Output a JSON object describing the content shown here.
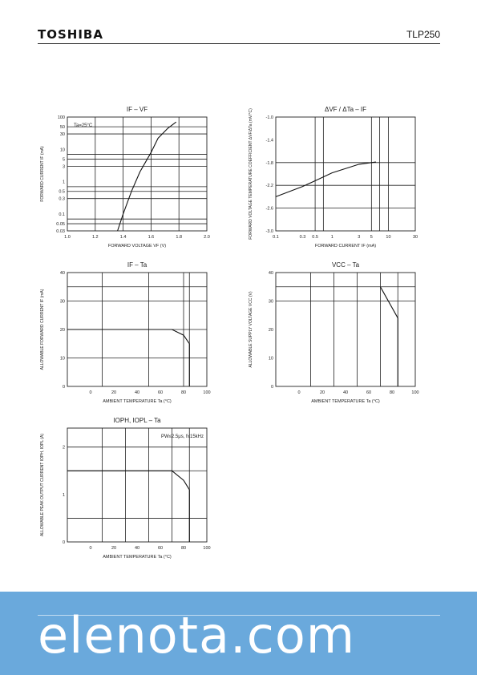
{
  "header": {
    "brand": "TOSHIBA",
    "part": "TLP250"
  },
  "watermark": "elenota.com",
  "chart_data": [
    {
      "id": "ifvf",
      "type": "line",
      "title": "IF – VF",
      "annotation": "Ta=25°C",
      "xlabel": "FORWARD VOLTAGE  VF  (V)",
      "ylabel": "FORWARD CURRENT  IF  (mA)",
      "xscale": "linear",
      "yscale": "log",
      "xlim": [
        1.0,
        2.0
      ],
      "ylim": [
        0.03,
        100
      ],
      "xticks": [
        1.0,
        1.2,
        1.4,
        1.6,
        1.8,
        2.0
      ],
      "xtick_labels": [
        "1.0",
        "1.2",
        "1.4",
        "1.6",
        "1.8",
        "2.0"
      ],
      "yticks": [
        0.03,
        0.05,
        0.1,
        0.3,
        0.5,
        1,
        3,
        5,
        10,
        30,
        50,
        100
      ],
      "ytick_labels": [
        "0.03",
        "0.05",
        "0.1",
        "0.3",
        "0.5",
        "1",
        "3",
        "5",
        "10",
        "30",
        "50",
        "100"
      ],
      "grid_x": [
        1.2,
        1.4,
        1.6,
        1.8
      ],
      "grid_y": [
        0.05,
        0.07,
        0.3,
        0.5,
        0.7,
        3,
        5,
        7,
        30,
        50
      ],
      "series": [
        {
          "x": [
            1.36,
            1.4,
            1.46,
            1.52,
            1.6,
            1.65,
            1.72,
            1.78
          ],
          "y": [
            0.03,
            0.1,
            0.5,
            2,
            8,
            22,
            45,
            70
          ]
        }
      ]
    },
    {
      "id": "dvf",
      "type": "line",
      "title": "ΔVF / ΔTa – IF",
      "xlabel": "FORWARD CURRENT  IF  (mA)",
      "ylabel": "FORWARD VOLTAGE TEMPERATURE COEFFICIENT  ΔVF/ΔTa  (mV/°C)",
      "xscale": "log",
      "yscale": "linear",
      "xlim": [
        0.1,
        30
      ],
      "ylim": [
        -3.0,
        -1.0
      ],
      "xticks": [
        0.1,
        0.3,
        0.5,
        1,
        3,
        5,
        10,
        30
      ],
      "xtick_labels": [
        "0.1",
        "0.3",
        "0.5",
        "1",
        "3",
        "5",
        "10",
        "30"
      ],
      "yticks": [
        -3.0,
        -2.6,
        -2.2,
        -1.8,
        -1.4,
        -1.0
      ],
      "ytick_labels": [
        "-3.0",
        "-2.6",
        "-2.2",
        "-1.8",
        "-1.4",
        "-1.0"
      ],
      "grid_x": [
        0.5,
        0.7,
        5,
        7,
        10
      ],
      "grid_y": [
        -2.6,
        -2.2,
        -1.8
      ],
      "series": [
        {
          "x": [
            0.1,
            0.3,
            0.5,
            1,
            3,
            6
          ],
          "y": [
            -2.4,
            -2.22,
            -2.12,
            -1.98,
            -1.83,
            -1.79
          ]
        }
      ]
    },
    {
      "id": "ifta",
      "type": "line",
      "title": "IF – Ta",
      "xlabel": "AMBIENT TEMPERATURE  Ta  (°C)",
      "ylabel": "ALLOWABLE FORWARD CURRENT  IF  (mA)",
      "xscale": "linear",
      "yscale": "linear",
      "xlim": [
        -20,
        100
      ],
      "ylim": [
        0,
        40
      ],
      "xticks": [
        0,
        20,
        40,
        60,
        80,
        100
      ],
      "xtick_labels": [
        "0",
        "20",
        "40",
        "60",
        "80",
        "100"
      ],
      "yticks": [
        0,
        10,
        20,
        30,
        40
      ],
      "ytick_labels": [
        "0",
        "10",
        "20",
        "30",
        "40"
      ],
      "grid_x": [
        10,
        50,
        80,
        85
      ],
      "grid_y": [
        10,
        20,
        30,
        35
      ],
      "series": [
        {
          "x": [
            -20,
            70,
            80,
            85,
            85
          ],
          "y": [
            20,
            20,
            18,
            15,
            0
          ]
        }
      ]
    },
    {
      "id": "vccta",
      "type": "line",
      "title": "VCC – Ta",
      "xlabel": "AMBIENT TEMPERATURE  Ta  (°C)",
      "ylabel": "ALLOWABLE SUPPLY VOLTAGE  VCC  (V)",
      "xscale": "linear",
      "yscale": "linear",
      "xlim": [
        -20,
        100
      ],
      "ylim": [
        0,
        40
      ],
      "xticks": [
        0,
        20,
        40,
        60,
        80,
        100
      ],
      "xtick_labels": [
        "0",
        "20",
        "40",
        "60",
        "80",
        "100"
      ],
      "yticks": [
        0,
        10,
        20,
        30,
        40
      ],
      "ytick_labels": [
        "0",
        "10",
        "20",
        "30",
        "40"
      ],
      "grid_x": [
        10,
        30,
        50,
        70,
        85
      ],
      "grid_y": [
        30,
        35
      ],
      "series": [
        {
          "x": [
            70,
            85,
            85
          ],
          "y": [
            35,
            24,
            0
          ]
        }
      ]
    },
    {
      "id": "iopta",
      "type": "line",
      "title": "IOPH, IOPL – Ta",
      "annotation": "PW≤2.5μs, f≤15kHz",
      "xlabel": "AMBIENT TEMPERATURE  Ta  (°C)",
      "ylabel": "ALLOWABLE PEAK OUTPUT CURRENT  IOPH, IOPL  (A)",
      "xscale": "linear",
      "yscale": "linear",
      "xlim": [
        -20,
        100
      ],
      "ylim": [
        0,
        2.4
      ],
      "xticks": [
        0,
        20,
        40,
        60,
        80,
        100
      ],
      "xtick_labels": [
        "0",
        "20",
        "40",
        "60",
        "80",
        "100"
      ],
      "yticks": [
        0,
        1,
        2
      ],
      "ytick_labels": [
        "0",
        "1",
        "2"
      ],
      "grid_x": [
        10,
        30,
        50,
        70,
        85
      ],
      "grid_y": [
        0.5,
        1.5,
        2.0
      ],
      "series": [
        {
          "x": [
            -20,
            70,
            80,
            85,
            85
          ],
          "y": [
            1.5,
            1.5,
            1.3,
            1.1,
            0
          ]
        }
      ]
    }
  ],
  "layout_note": ""
}
